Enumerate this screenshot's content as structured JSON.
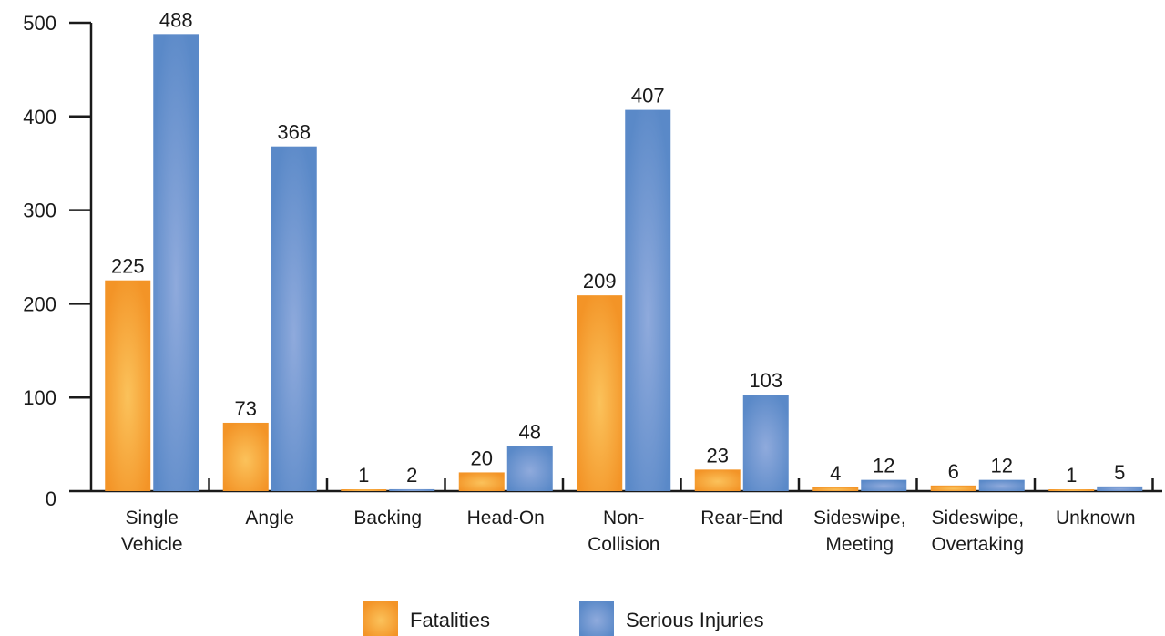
{
  "chart_data": {
    "type": "bar",
    "categories": [
      [
        "Single",
        "Vehicle"
      ],
      [
        "Angle"
      ],
      [
        "Backing"
      ],
      [
        "Head-On"
      ],
      [
        "Non-",
        "Collision"
      ],
      [
        "Rear-End"
      ],
      [
        "Sideswipe,",
        "Meeting"
      ],
      [
        "Sideswipe,",
        "Overtaking"
      ],
      [
        "Unknown"
      ]
    ],
    "series": [
      {
        "name": "Fatalities",
        "values": [
          225,
          73,
          1,
          20,
          209,
          23,
          4,
          6,
          1
        ]
      },
      {
        "name": "Serious Injuries",
        "values": [
          488,
          368,
          2,
          48,
          407,
          103,
          12,
          12,
          5
        ]
      }
    ],
    "ylim": [
      0,
      500
    ],
    "yticks": [
      0,
      100,
      200,
      300,
      400,
      500
    ],
    "grid": false,
    "legend": "bottom-center",
    "colors": {
      "fatalities_edge": "#f39427",
      "fatalities_center": "#fbc25b",
      "injuries_edge": "#5a89c8",
      "injuries_center": "#8faadc",
      "axis": "#1a1a1a"
    }
  }
}
